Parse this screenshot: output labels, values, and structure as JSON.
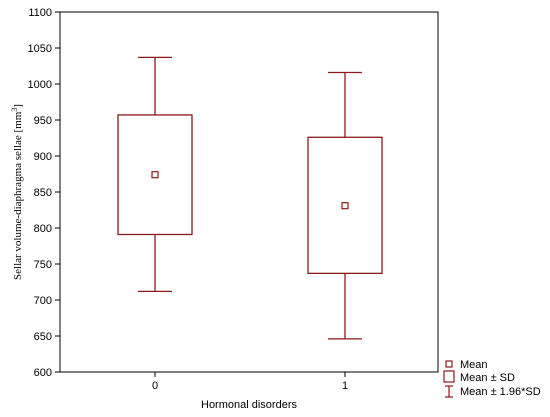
{
  "chart_data": {
    "type": "box",
    "xlabel": "Hormonal disorders",
    "ylabel_main": "Sellar volume-diaphragma sellae [mm",
    "ylabel_sup": "3",
    "ylabel_end": "]",
    "ylim": [
      600,
      1100
    ],
    "yticks": [
      600,
      650,
      700,
      750,
      800,
      850,
      900,
      950,
      1000,
      1050,
      1100
    ],
    "categories": [
      "0",
      "1"
    ],
    "boxes": [
      {
        "category": "0",
        "mean": 874,
        "sd_low": 791,
        "sd_high": 957,
        "ci_low": 712,
        "ci_high": 1037
      },
      {
        "category": "1",
        "mean": 831,
        "sd_low": 737,
        "sd_high": 926,
        "ci_low": 646,
        "ci_high": 1016
      }
    ],
    "legend": [
      "Mean",
      "Mean ± SD",
      "Mean ± 1.96*SD"
    ],
    "colors": {
      "box": "#8b1a1a",
      "axis": "#000000"
    },
    "grid": false,
    "legend_position": "bottom-right"
  }
}
